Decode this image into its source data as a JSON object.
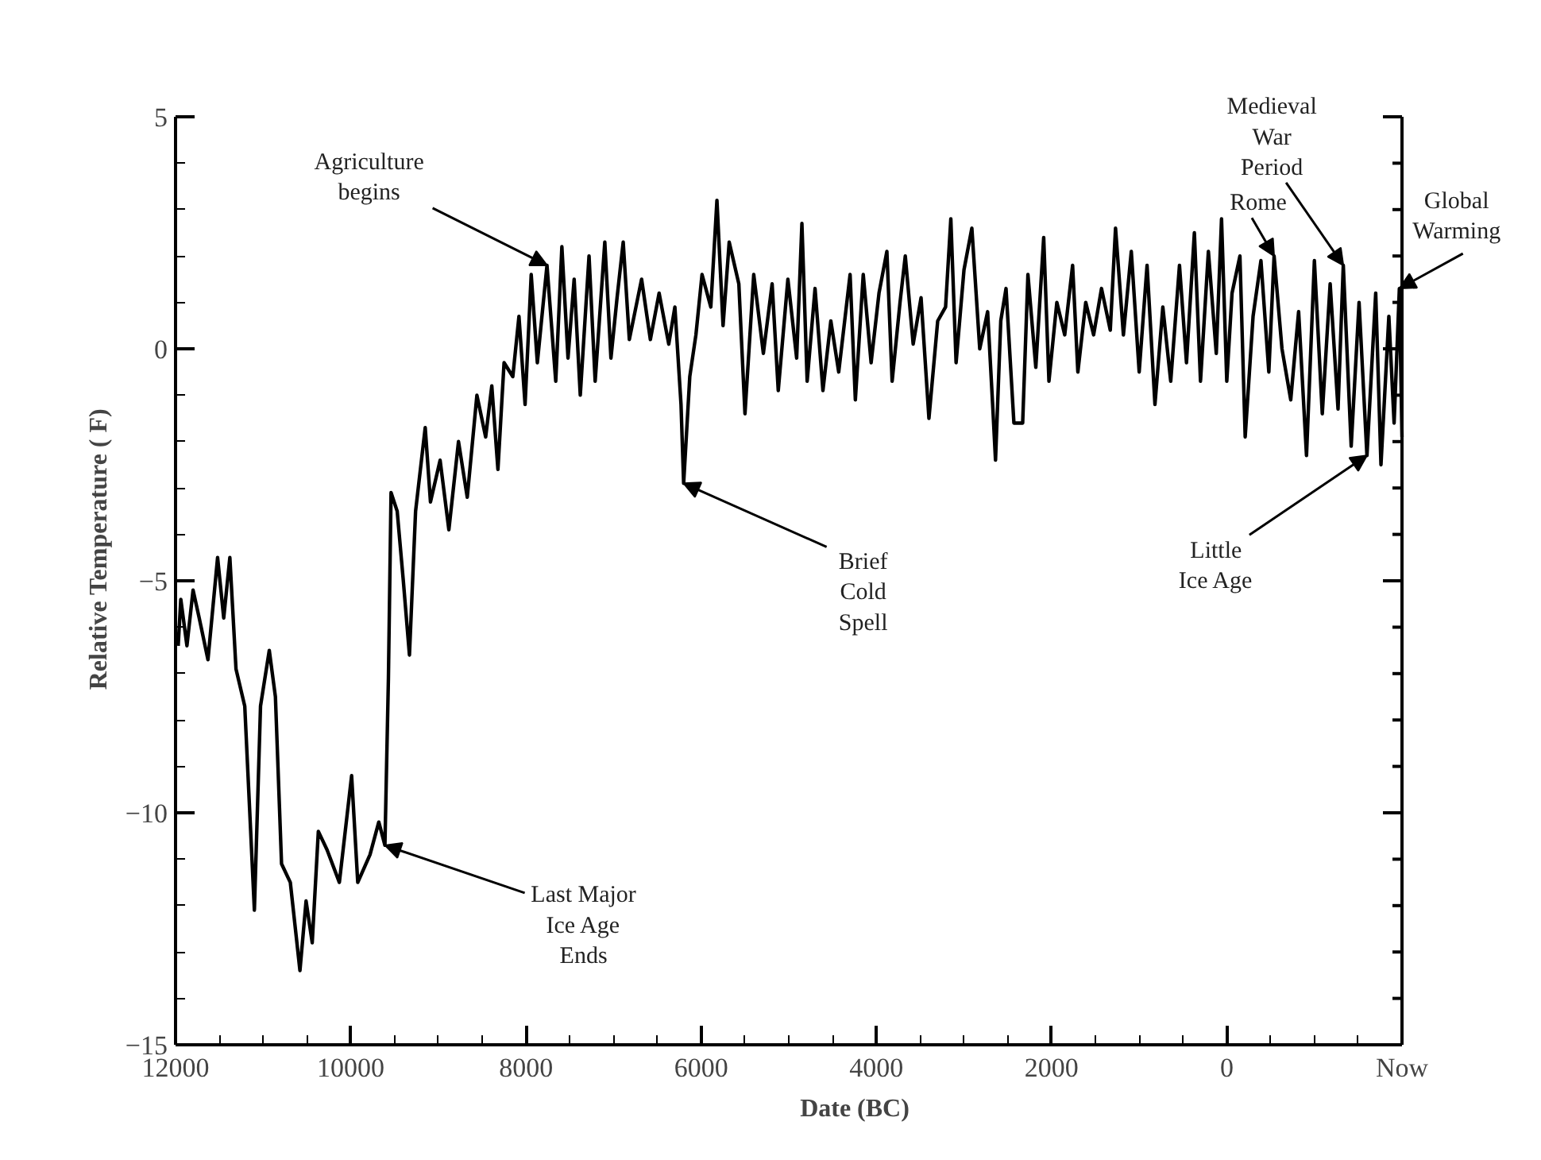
{
  "chart_data": {
    "type": "line",
    "xlabel": "Date (BC)",
    "ylabel": "Relative Temperature ( F)",
    "color": "#000000",
    "line_style": "solid",
    "xlim": [
      12000,
      -2000
    ],
    "xticks": [
      12000,
      10000,
      8000,
      6000,
      4000,
      2000,
      0,
      {
        "value": -2000,
        "label": "Now"
      }
    ],
    "ylim": [
      -15,
      5
    ],
    "yticks": [
      -15,
      -10,
      -5,
      0,
      5
    ],
    "x": [
      11970,
      11940,
      11870,
      11800,
      11730,
      11630,
      11520,
      11450,
      11380,
      11310,
      11210,
      11100,
      11030,
      10930,
      10860,
      10790,
      10690,
      10580,
      10510,
      10440,
      10370,
      10270,
      10130,
      9990,
      9920,
      9780,
      9680,
      9610,
      9570,
      9540,
      9470,
      9400,
      9330,
      9260,
      9150,
      9090,
      8980,
      8880,
      8770,
      8670,
      8560,
      8460,
      8390,
      8320,
      8250,
      8150,
      8080,
      8010,
      7940,
      7870,
      7760,
      7660,
      7590,
      7520,
      7450,
      7380,
      7280,
      7210,
      7100,
      7030,
      6960,
      6890,
      6820,
      6680,
      6580,
      6480,
      6370,
      6300,
      6230,
      6200,
      6130,
      6060,
      5990,
      5890,
      5820,
      5750,
      5680,
      5570,
      5500,
      5400,
      5290,
      5190,
      5120,
      5010,
      4910,
      4850,
      4790,
      4700,
      4610,
      4520,
      4430,
      4300,
      4240,
      4150,
      4060,
      3970,
      3880,
      3820,
      3730,
      3670,
      3580,
      3490,
      3400,
      3300,
      3210,
      3150,
      3090,
      3000,
      2910,
      2820,
      2730,
      2670,
      2640,
      2580,
      2520,
      2430,
      2330,
      2270,
      2180,
      2090,
      2030,
      1940,
      1850,
      1760,
      1700,
      1610,
      1520,
      1430,
      1330,
      1270,
      1180,
      1090,
      1000,
      910,
      820,
      730,
      640,
      540,
      460,
      370,
      300,
      210,
      120,
      60,
      0,
      -60,
      -150,
      -210,
      -300,
      -390,
      -480,
      -540,
      -630,
      -730,
      -820,
      -910,
      -1000,
      -1090,
      -1180,
      -1270,
      -1330,
      -1420,
      -1510,
      -1600,
      -1700,
      -1760,
      -1850,
      -1910,
      -1970,
      -2000
    ],
    "values": [
      -6.4,
      -5.4,
      -6.4,
      -5.2,
      -5.8,
      -6.7,
      -4.5,
      -5.8,
      -4.5,
      -6.9,
      -7.7,
      -12.1,
      -7.7,
      -6.5,
      -7.5,
      -11.1,
      -11.5,
      -13.4,
      -11.9,
      -12.8,
      -10.4,
      -10.8,
      -11.5,
      -9.2,
      -11.5,
      -10.9,
      -10.2,
      -10.7,
      -7.1,
      -3.1,
      -3.5,
      -5.0,
      -6.6,
      -3.5,
      -1.7,
      -3.3,
      -2.4,
      -3.9,
      -2.0,
      -3.2,
      -1.0,
      -1.9,
      -0.8,
      -2.6,
      -0.3,
      -0.6,
      0.7,
      -1.2,
      1.6,
      -0.3,
      1.8,
      -0.7,
      2.2,
      -0.2,
      1.5,
      -1.0,
      2.0,
      -0.7,
      2.3,
      -0.2,
      1.1,
      2.3,
      0.2,
      1.5,
      0.2,
      1.2,
      0.1,
      0.9,
      -1.2,
      -2.9,
      -0.6,
      0.3,
      1.6,
      0.9,
      3.2,
      0.5,
      2.3,
      1.4,
      -1.4,
      1.6,
      -0.1,
      1.4,
      -0.9,
      1.5,
      -0.2,
      2.7,
      -0.7,
      1.3,
      -0.9,
      0.6,
      -0.5,
      1.6,
      -1.1,
      1.6,
      -0.3,
      1.2,
      2.1,
      -0.7,
      1.0,
      2.0,
      0.1,
      1.1,
      -1.5,
      0.6,
      0.9,
      2.8,
      -0.3,
      1.7,
      2.6,
      0.0,
      0.8,
      -1.3,
      -2.4,
      0.6,
      1.3,
      -1.6,
      -1.6,
      1.6,
      -0.4,
      2.4,
      -0.7,
      1.0,
      0.3,
      1.8,
      -0.5,
      1.0,
      0.3,
      1.3,
      0.4,
      2.6,
      0.3,
      2.1,
      -0.5,
      1.8,
      -1.2,
      0.9,
      -0.7,
      1.8,
      -0.3,
      2.5,
      -0.7,
      2.1,
      -0.1,
      2.8,
      -0.7,
      1.2,
      2.0,
      -1.9,
      0.7,
      1.9,
      -0.5,
      2.0,
      0.0,
      -1.1,
      0.8,
      -2.3,
      1.9,
      -1.4,
      1.4,
      -1.3,
      1.8,
      -2.1,
      1.0,
      -2.3,
      1.2,
      -2.5,
      0.7,
      -1.6,
      1.3,
      -1.9
    ],
    "annotations": [
      {
        "text": "Agriculture\nbegins",
        "x": 7760,
        "y": 1.8
      },
      {
        "text": "Last Major\nIce Age\nEnds",
        "x": 9610,
        "y": -10.7
      },
      {
        "text": "Brief\nCold\nSpell",
        "x": 6200,
        "y": -2.9
      },
      {
        "text": "Rome",
        "x": -540,
        "y": 2.0
      },
      {
        "text": "Medieval\nWar\nPeriod",
        "x": -1330,
        "y": 1.8
      },
      {
        "text": "Global\nWarming",
        "x": -1970,
        "y": 1.3
      },
      {
        "text": "Little\nIce Age",
        "x": -1600,
        "y": -2.3
      }
    ]
  }
}
